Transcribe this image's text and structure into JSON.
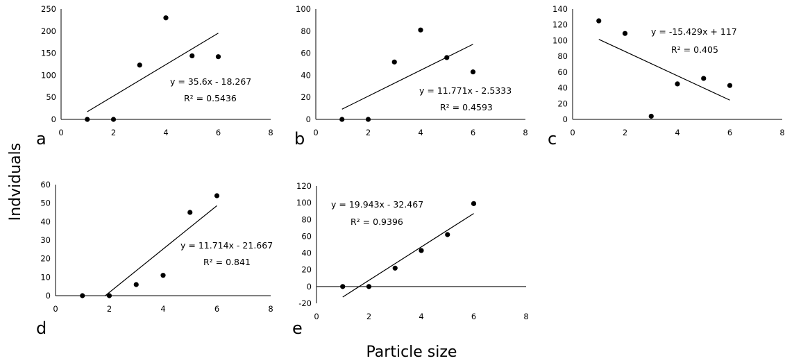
{
  "figure": {
    "ylabel": "Indviduals",
    "xlabel": "Particle size"
  },
  "chart_data": [
    {
      "type": "scatter",
      "panel": "a",
      "x": [
        1,
        2,
        3,
        4,
        5,
        6
      ],
      "y": [
        0,
        0,
        123,
        230,
        144,
        142
      ],
      "trendline": {
        "slope": 35.6,
        "intercept": -18.267,
        "x_range": [
          1,
          6
        ]
      },
      "equation": "y = 35.6x - 18.267",
      "r2": "R² = 0.5436",
      "xlim": [
        0,
        8
      ],
      "ylim": [
        0,
        250
      ],
      "xticks": [
        0,
        2,
        4,
        6,
        8
      ],
      "yticks": [
        0,
        50,
        100,
        150,
        200,
        250
      ]
    },
    {
      "type": "scatter",
      "panel": "b",
      "x": [
        1,
        2,
        3,
        4,
        5,
        6
      ],
      "y": [
        0,
        0,
        52,
        81,
        56,
        43
      ],
      "trendline": {
        "slope": 11.771,
        "intercept": -2.5333,
        "x_range": [
          1,
          6
        ]
      },
      "equation": "y = 11.771x - 2.5333",
      "r2": "R² = 0.4593",
      "xlim": [
        0,
        8
      ],
      "ylim": [
        0,
        100
      ],
      "xticks": [
        0,
        2,
        4,
        6,
        8
      ],
      "yticks": [
        0,
        20,
        40,
        60,
        80,
        100
      ]
    },
    {
      "type": "scatter",
      "panel": "c",
      "x": [
        1,
        2,
        3,
        4,
        5,
        6
      ],
      "y": [
        125,
        109,
        4,
        45,
        52,
        43
      ],
      "trendline": {
        "slope": -15.429,
        "intercept": 117,
        "x_range": [
          1,
          6
        ]
      },
      "equation": "y = -15.429x + 117",
      "r2": "R² = 0.405",
      "xlim": [
        0,
        8
      ],
      "ylim": [
        0,
        140
      ],
      "xticks": [
        0,
        2,
        4,
        6,
        8
      ],
      "yticks": [
        0,
        20,
        40,
        60,
        80,
        100,
        120,
        140
      ]
    },
    {
      "type": "scatter",
      "panel": "d",
      "x": [
        1,
        2,
        3,
        4,
        5,
        6
      ],
      "y": [
        0,
        0,
        6,
        11,
        45,
        54
      ],
      "trendline": {
        "slope": 11.714,
        "intercept": -21.667,
        "x_range": [
          1.85,
          6
        ]
      },
      "equation": "y = 11.714x - 21.667",
      "r2": "R² = 0.841",
      "xlim": [
        0,
        8
      ],
      "ylim": [
        0,
        60
      ],
      "xticks": [
        0,
        2,
        4,
        6,
        8
      ],
      "yticks": [
        0,
        10,
        20,
        30,
        40,
        50,
        60
      ]
    },
    {
      "type": "scatter",
      "panel": "e",
      "x": [
        1,
        2,
        3,
        4,
        5,
        6
      ],
      "y": [
        0,
        0,
        22,
        43,
        62,
        99
      ],
      "trendline": {
        "slope": 19.943,
        "intercept": -32.467,
        "x_range": [
          1,
          6
        ]
      },
      "equation": "y = 19.943x - 32.467",
      "r2": "R² = 0.9396",
      "xlim": [
        0,
        8
      ],
      "ylim": [
        -20,
        120
      ],
      "xticks": [
        0,
        2,
        4,
        6,
        8
      ],
      "yticks": [
        -20,
        0,
        20,
        40,
        60,
        80,
        100,
        120
      ]
    }
  ]
}
